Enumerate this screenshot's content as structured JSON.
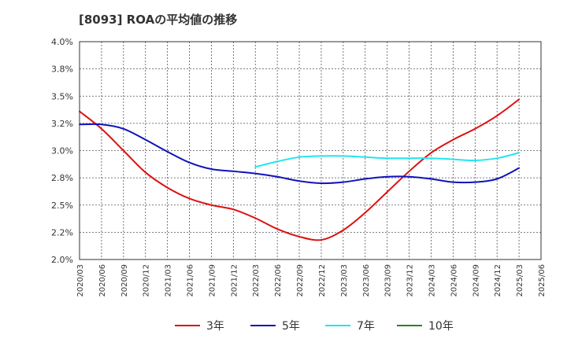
{
  "title": "[8093]  ROAの平均値の推移",
  "chart_data": {
    "type": "line",
    "title": "[8093]  ROAの平均値の推移",
    "xlabel": "",
    "ylabel": "",
    "ylim": [
      2.0,
      4.0
    ],
    "y_ticks": [
      "2.0%",
      "2.2%",
      "2.5%",
      "2.8%",
      "3.0%",
      "3.2%",
      "3.5%",
      "3.8%",
      "4.0%"
    ],
    "x_ticks": [
      "2020/03",
      "2020/06",
      "2020/09",
      "2020/12",
      "2021/03",
      "2021/06",
      "2021/09",
      "2021/12",
      "2022/03",
      "2022/06",
      "2022/09",
      "2022/12",
      "2023/03",
      "2023/06",
      "2023/09",
      "2023/12",
      "2024/03",
      "2024/06",
      "2024/09",
      "2024/12",
      "2025/03",
      "2025/06"
    ],
    "grid": true,
    "legend_position": "bottom",
    "series": [
      {
        "name": "3年",
        "color": "#dd1111",
        "x": [
          "2020/03",
          "2020/06",
          "2020/09",
          "2020/12",
          "2021/03",
          "2021/06",
          "2021/09",
          "2021/12",
          "2022/03",
          "2022/06",
          "2022/09",
          "2022/12",
          "2023/03",
          "2023/06",
          "2023/09",
          "2023/12",
          "2024/03",
          "2024/06",
          "2024/09",
          "2024/12",
          "2025/03"
        ],
        "values": [
          3.36,
          3.2,
          3.0,
          2.8,
          2.66,
          2.56,
          2.5,
          2.46,
          2.38,
          2.28,
          2.21,
          2.18,
          2.27,
          2.43,
          2.62,
          2.81,
          2.98,
          3.1,
          3.2,
          3.32,
          3.47
        ]
      },
      {
        "name": "5年",
        "color": "#1111bb",
        "x": [
          "2020/03",
          "2020/06",
          "2020/09",
          "2020/12",
          "2021/03",
          "2021/06",
          "2021/09",
          "2021/12",
          "2022/03",
          "2022/06",
          "2022/09",
          "2022/12",
          "2023/03",
          "2023/06",
          "2023/09",
          "2023/12",
          "2024/03",
          "2024/06",
          "2024/09",
          "2024/12",
          "2025/03"
        ],
        "values": [
          3.24,
          3.24,
          3.2,
          3.1,
          2.99,
          2.89,
          2.83,
          2.81,
          2.79,
          2.76,
          2.72,
          2.7,
          2.71,
          2.74,
          2.76,
          2.76,
          2.74,
          2.71,
          2.71,
          2.74,
          2.84
        ]
      },
      {
        "name": "7年",
        "color": "#22e5f0",
        "x": [
          "2022/03",
          "2022/06",
          "2022/09",
          "2022/12",
          "2023/03",
          "2023/06",
          "2023/09",
          "2023/12",
          "2024/03",
          "2024/06",
          "2024/09",
          "2024/12",
          "2025/03"
        ],
        "values": [
          2.85,
          2.9,
          2.94,
          2.95,
          2.95,
          2.94,
          2.93,
          2.93,
          2.93,
          2.92,
          2.91,
          2.93,
          2.98
        ]
      },
      {
        "name": "10年",
        "color": "#228822",
        "x": [],
        "values": []
      }
    ]
  }
}
